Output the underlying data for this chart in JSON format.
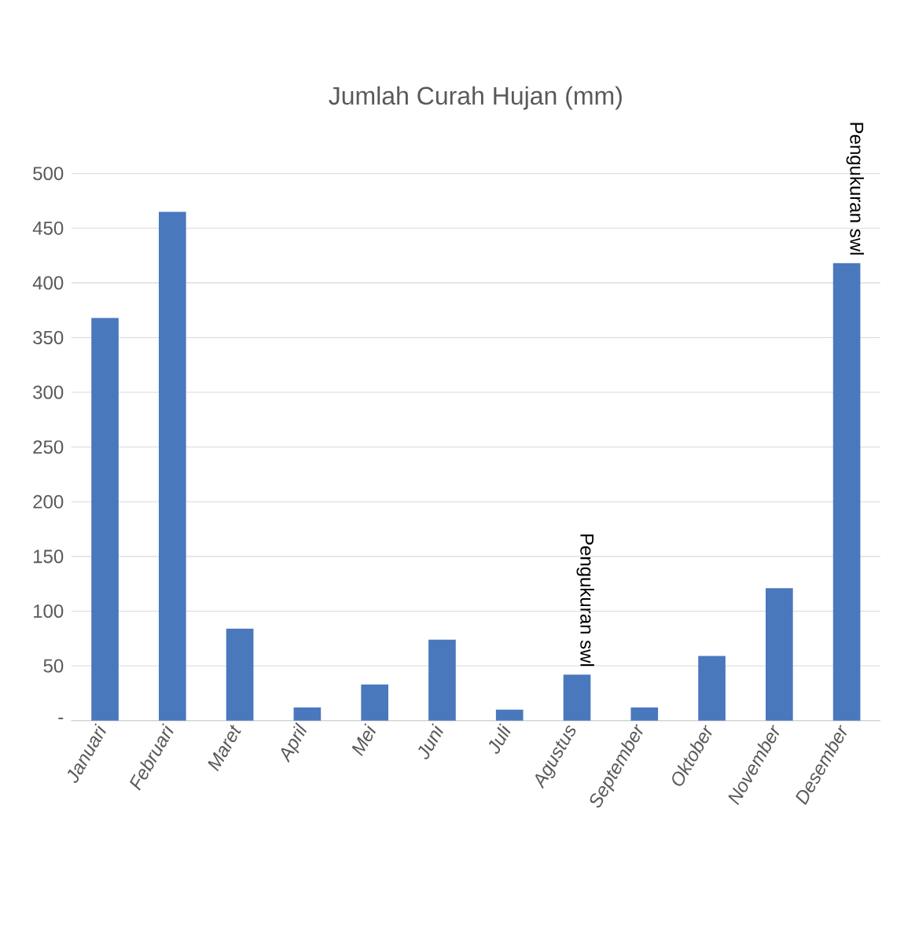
{
  "chart_data": {
    "type": "bar",
    "title": "Jumlah Curah Hujan (mm)",
    "categories": [
      "Januari",
      "Februari",
      "Maret",
      "April",
      "Mei",
      "Juni",
      "Juli",
      "Agustus",
      "September",
      "Oktober",
      "November",
      "Desember"
    ],
    "values": [
      368,
      465,
      84,
      12,
      33,
      74,
      10,
      42,
      12,
      59,
      121,
      418
    ],
    "color": "#4a78bd",
    "ylim": [
      0,
      500
    ],
    "yticks": [
      {
        "value": 0,
        "label": "-"
      },
      50,
      100,
      150,
      200,
      250,
      300,
      350,
      400,
      450,
      500
    ],
    "grid": "y",
    "annotations": [
      {
        "text": "Pengukuran swl",
        "x": "Agustus",
        "y": 42
      },
      {
        "text": "Pengukuran swl",
        "x": "Desember",
        "y": 418
      }
    ]
  }
}
